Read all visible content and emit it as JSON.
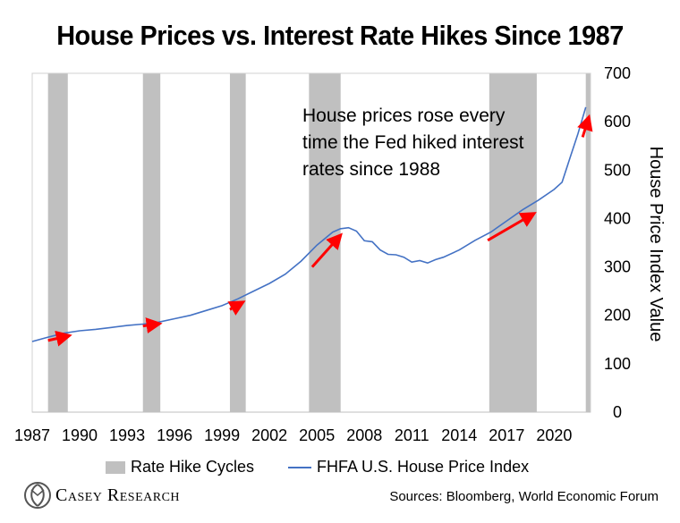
{
  "chart_data": {
    "type": "line",
    "title": "House Prices vs. Interest Rate Hikes Since 1987",
    "ylabel": "House Price Index Value",
    "ylim": [
      0,
      700
    ],
    "yticks": [
      0,
      100,
      200,
      300,
      400,
      500,
      600,
      700
    ],
    "xlim": [
      1987,
      2022.3
    ],
    "xticks": [
      1987,
      1990,
      1993,
      1996,
      1999,
      2002,
      2005,
      2008,
      2011,
      2014,
      2017,
      2020
    ],
    "grid": false,
    "legend_position": "bottom",
    "annotation": [
      "House prices rose every",
      "time the Fed hiked interest",
      "rates since 1988"
    ],
    "series": [
      {
        "name": "FHFA U.S. House Price Index",
        "color": "#4472c4",
        "x": [
          1987,
          1988,
          1989,
          1990,
          1991,
          1992,
          1993,
          1994,
          1995,
          1996,
          1997,
          1998,
          1999,
          2000,
          2001,
          2002,
          2003,
          2004,
          2005,
          2006,
          2006.5,
          2007,
          2007.5,
          2008,
          2008.5,
          2009,
          2009.5,
          2010,
          2010.5,
          2011,
          2011.5,
          2012,
          2012.5,
          2013,
          2014,
          2015,
          2016,
          2017,
          2018,
          2019,
          2020,
          2020.5,
          2021,
          2021.5,
          2022
        ],
        "y": [
          146,
          155,
          163,
          168,
          171,
          175,
          179,
          182,
          186,
          193,
          200,
          210,
          220,
          234,
          250,
          266,
          285,
          312,
          345,
          372,
          379,
          381,
          374,
          354,
          352,
          335,
          326,
          325,
          320,
          310,
          313,
          308,
          315,
          320,
          335,
          355,
          372,
          395,
          418,
          438,
          460,
          475,
          525,
          575,
          630
        ]
      }
    ],
    "bands": {
      "name": "Rate Hike Cycles",
      "color": "#c0c0c0",
      "ranges": [
        [
          1988.0,
          1989.25
        ],
        [
          1994.0,
          1995.1
        ],
        [
          1999.5,
          2000.5
        ],
        [
          2004.5,
          2006.5
        ],
        [
          2015.9,
          2018.9
        ],
        [
          2022.0,
          2022.3
        ]
      ]
    },
    "arrows": {
      "color": "#ff0000",
      "segments": [
        [
          1988.0,
          148,
          1989.2,
          157
        ],
        [
          1994.0,
          178,
          1994.9,
          182
        ],
        [
          1999.5,
          212,
          2000.2,
          225
        ],
        [
          2004.7,
          300,
          2006.4,
          362
        ],
        [
          2015.8,
          355,
          2018.6,
          408
        ],
        [
          2021.8,
          568,
          2022.15,
          605
        ]
      ]
    }
  },
  "legend": {
    "bands_label": "Rate Hike Cycles",
    "line_label": "FHFA U.S. House Price Index"
  },
  "brand": {
    "name": "Casey Research"
  },
  "source": "Sources: Bloomberg, World Economic Forum"
}
